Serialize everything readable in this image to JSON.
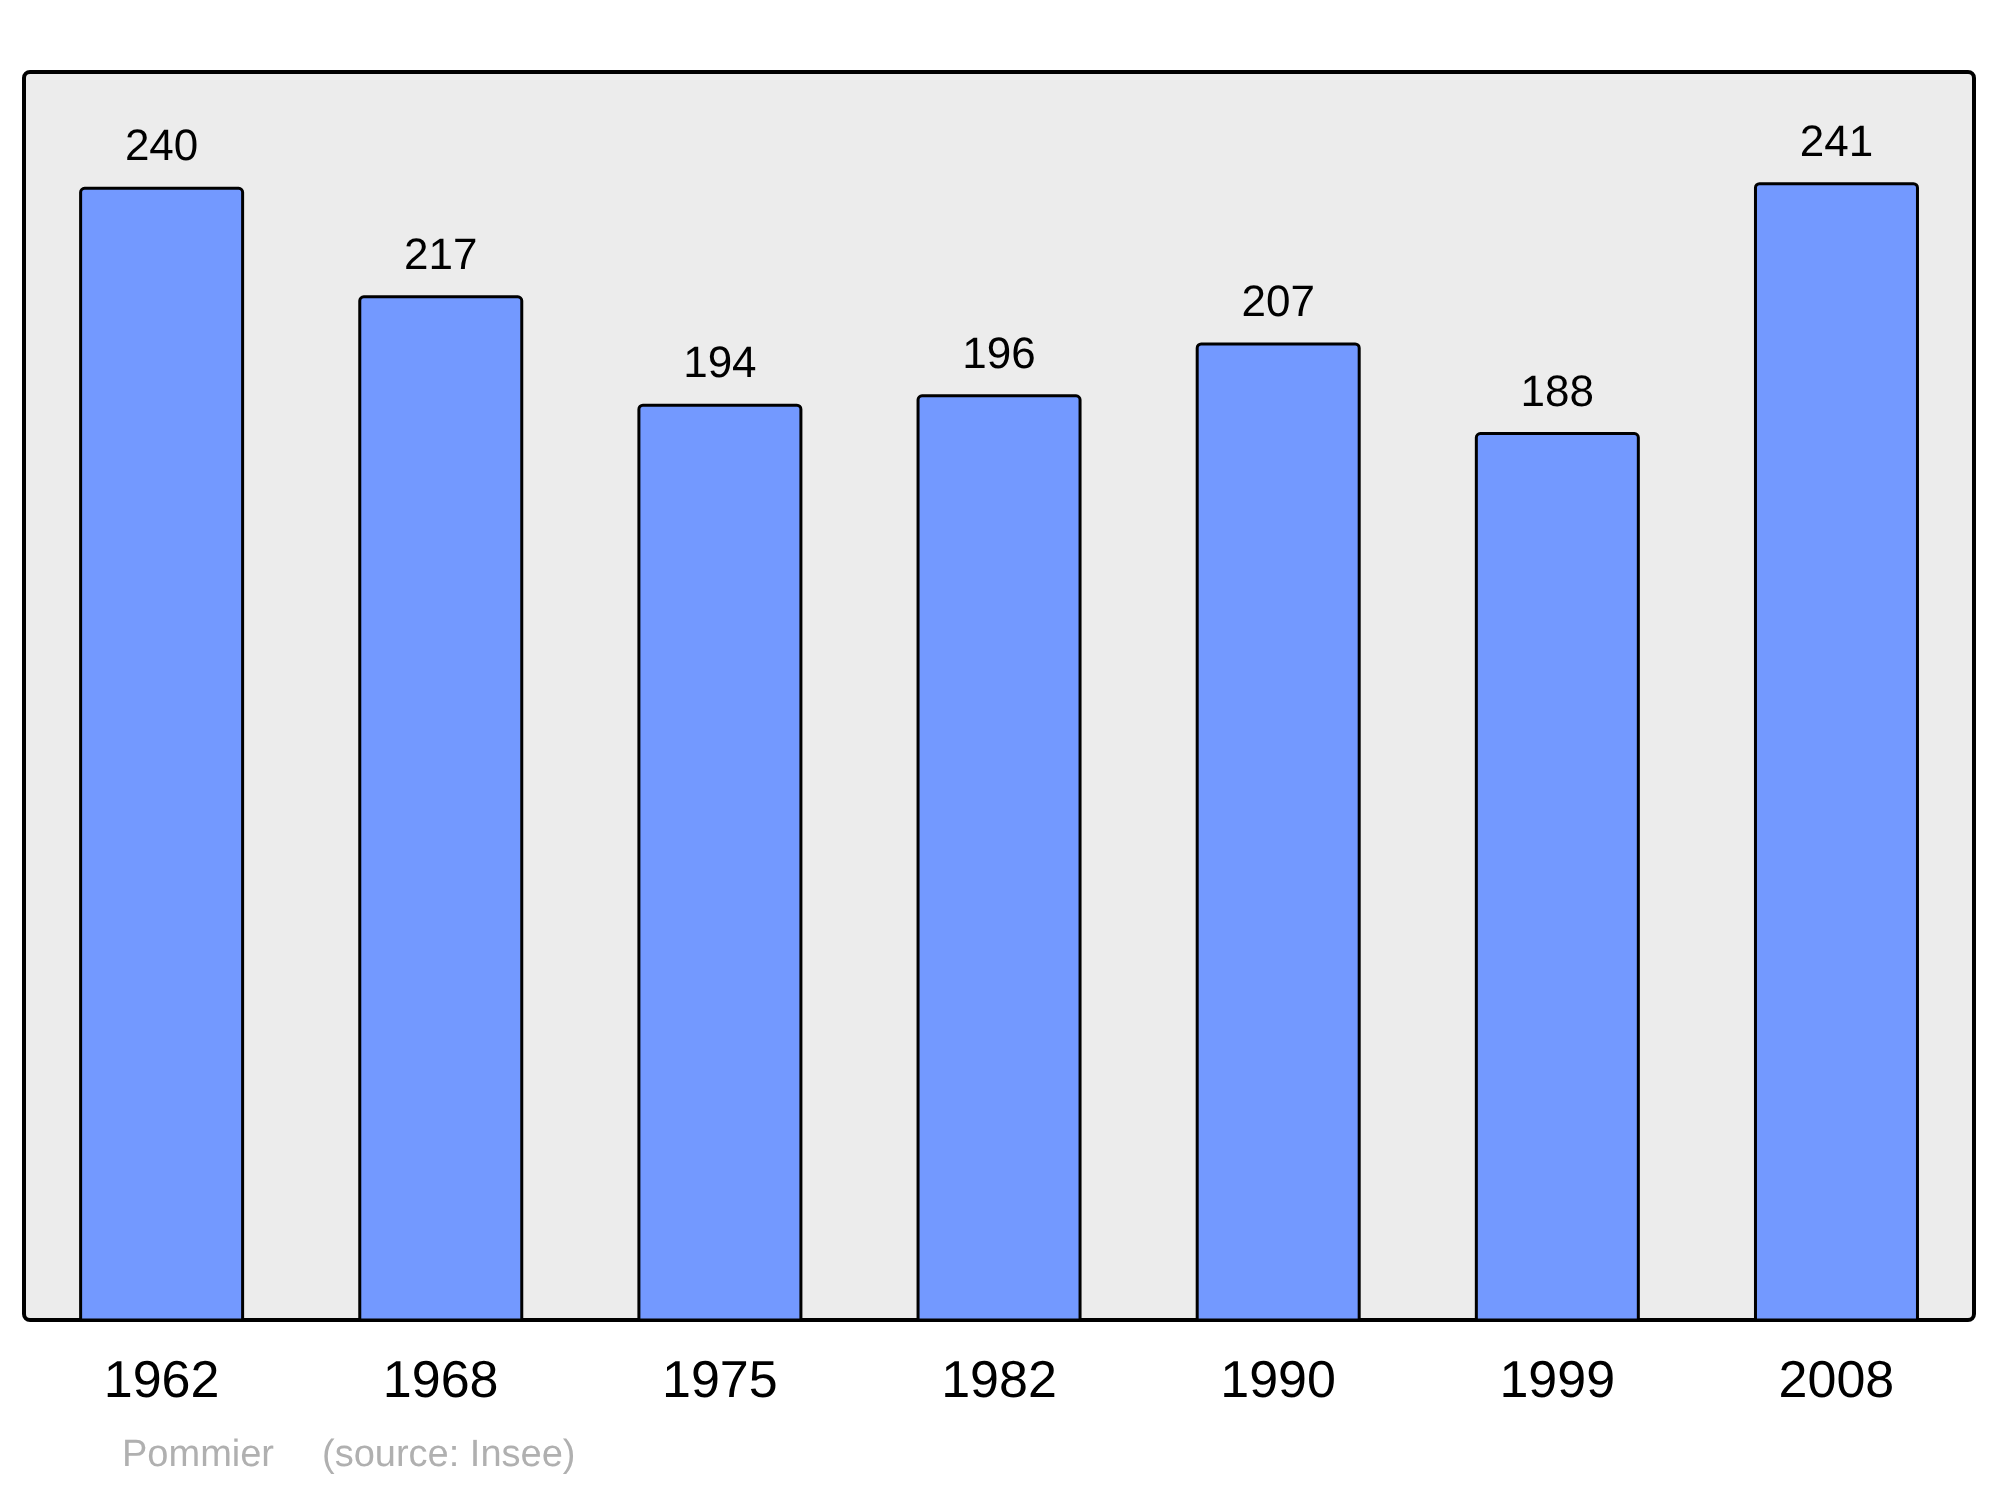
{
  "chart_data": {
    "type": "bar",
    "categories": [
      "1962",
      "1968",
      "1975",
      "1982",
      "1990",
      "1999",
      "2008"
    ],
    "values": [
      240,
      217,
      194,
      196,
      207,
      188,
      241
    ],
    "color": "#7399ff",
    "data_labels": true,
    "annotations": [
      "Pommier",
      "(source: Insee)"
    ]
  }
}
